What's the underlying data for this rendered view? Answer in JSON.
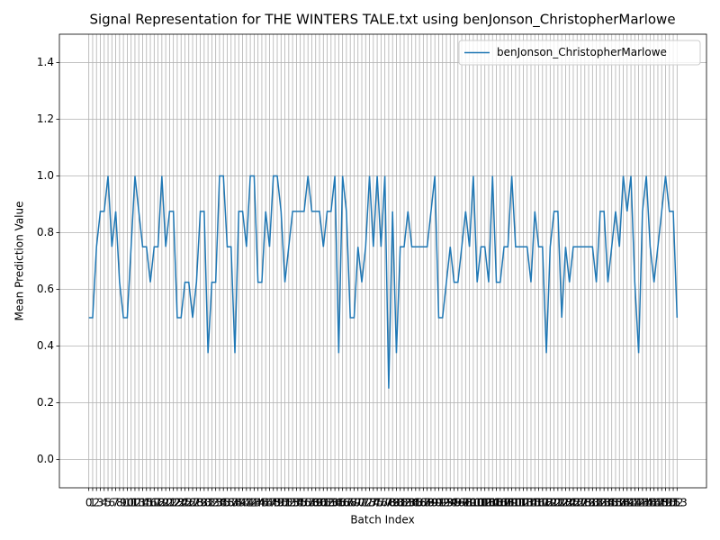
{
  "chart_data": {
    "type": "line",
    "title": "Signal Representation for THE WINTERS TALE.txt using benJonson_ChristopherMarlowe",
    "x_label": "Batch Index",
    "y_label": "Mean Prediction Value",
    "x": [
      0,
      1,
      2,
      3,
      4,
      5,
      6,
      7,
      8,
      9,
      10,
      11,
      12,
      13,
      14,
      15,
      16,
      17,
      18,
      19,
      20,
      21,
      22,
      23,
      24,
      25,
      26,
      27,
      28,
      29,
      30,
      31,
      32,
      33,
      34,
      35,
      36,
      37,
      38,
      39,
      40,
      41,
      42,
      43,
      44,
      45,
      46,
      47,
      48,
      49,
      50,
      51,
      52,
      53,
      54,
      55,
      56,
      57,
      58,
      59,
      60,
      61,
      62,
      63,
      64,
      65,
      66,
      67,
      68,
      69,
      70,
      71,
      72,
      73,
      74,
      75,
      76,
      77,
      78,
      79,
      80,
      81,
      82,
      83,
      84,
      85,
      86,
      87,
      88,
      89,
      90,
      91,
      92,
      93,
      94,
      95,
      96,
      97,
      98,
      99,
      100,
      101,
      102,
      103,
      104,
      105,
      106,
      107,
      108,
      109,
      110,
      111,
      112,
      113,
      114,
      115,
      116,
      117,
      118,
      119,
      120,
      121,
      122,
      123,
      124,
      125,
      126,
      127,
      128,
      129,
      130,
      131,
      132,
      133,
      134,
      135,
      136,
      137,
      138,
      139,
      140,
      141,
      142,
      143,
      144,
      145,
      146,
      147,
      148,
      149,
      150,
      151,
      152,
      153
    ],
    "series": [
      {
        "name": "benJonson_ChristopherMarlowe",
        "color": "#1f77b4",
        "values": [
          0.5,
          0.5,
          0.75,
          0.875,
          0.875,
          1,
          0.75,
          0.875,
          0.625,
          0.5,
          0.5,
          0.75,
          1,
          0.875,
          0.75,
          0.75,
          0.625,
          0.75,
          0.75,
          1,
          0.75,
          0.875,
          0.875,
          0.5,
          0.5,
          0.625,
          0.625,
          0.5,
          0.625,
          0.875,
          0.875,
          0.375,
          0.625,
          0.625,
          1,
          1,
          0.75,
          0.75,
          0.375,
          0.875,
          0.875,
          0.75,
          1,
          1,
          0.625,
          0.625,
          0.875,
          0.75,
          1,
          1,
          0.875,
          0.625,
          0.75,
          0.875,
          0.875,
          0.875,
          0.875,
          1,
          0.875,
          0.875,
          0.875,
          0.75,
          0.875,
          0.875,
          1,
          0.375,
          1,
          0.875,
          0.5,
          0.5,
          0.75,
          0.625,
          0.75,
          1,
          0.75,
          1,
          0.75,
          1,
          0.25,
          0.875,
          0.375,
          0.75,
          0.75,
          0.875,
          0.75,
          0.75,
          0.75,
          0.75,
          0.75,
          0.875,
          1,
          0.5,
          0.5,
          0.625,
          0.75,
          0.625,
          0.625,
          0.75,
          0.875,
          0.75,
          1,
          0.625,
          0.75,
          0.75,
          0.625,
          1,
          0.625,
          0.625,
          0.75,
          0.75,
          1,
          0.75,
          0.75,
          0.75,
          0.75,
          0.625,
          0.875,
          0.75,
          0.75,
          0.375,
          0.75,
          0.875,
          0.875,
          0.5,
          0.75,
          0.625,
          0.75,
          0.75,
          0.75,
          0.75,
          0.75,
          0.75,
          0.625,
          0.875,
          0.875,
          0.625,
          0.75,
          0.875,
          0.75,
          1,
          0.875,
          1,
          0.625,
          0.375,
          0.875,
          1,
          0.75,
          0.625,
          0.75,
          0.875,
          1,
          0.875,
          0.875,
          0.5
        ]
      }
    ],
    "xlim": [
      -7.65,
      160.65
    ],
    "xticks": [
      0,
      1,
      2,
      3,
      4,
      5,
      6,
      7,
      8,
      9,
      10,
      11,
      12,
      13,
      14,
      15,
      16,
      17,
      18,
      19,
      20,
      21,
      22,
      23,
      24,
      25,
      26,
      27,
      28,
      29,
      30,
      31,
      32,
      33,
      34,
      35,
      36,
      37,
      38,
      39,
      40,
      41,
      42,
      43,
      44,
      45,
      46,
      47,
      48,
      49,
      50,
      51,
      52,
      53,
      54,
      55,
      56,
      57,
      58,
      59,
      60,
      61,
      62,
      63,
      64,
      65,
      66,
      67,
      68,
      69,
      70,
      71,
      72,
      73,
      74,
      75,
      76,
      77,
      78,
      79,
      80,
      81,
      82,
      83,
      84,
      85,
      86,
      87,
      88,
      89,
      90,
      91,
      92,
      93,
      94,
      95,
      96,
      97,
      98,
      99,
      100,
      101,
      102,
      103,
      104,
      105,
      106,
      107,
      108,
      109,
      110,
      111,
      112,
      113,
      114,
      115,
      116,
      117,
      118,
      119,
      120,
      121,
      122,
      123,
      124,
      125,
      126,
      127,
      128,
      129,
      130,
      131,
      132,
      133,
      134,
      135,
      136,
      137,
      138,
      139,
      140,
      141,
      142,
      143,
      144,
      145,
      146,
      147,
      148,
      149,
      150,
      151,
      152,
      153
    ],
    "ylim": [
      -0.1,
      1.5
    ],
    "yticks": [
      {
        "value": 0,
        "label": "0.0"
      },
      0.2,
      0.4,
      0.6,
      0.8,
      {
        "value": 1,
        "label": "1.0"
      },
      1.2,
      1.4
    ],
    "grid": true,
    "legend": "upper right"
  }
}
